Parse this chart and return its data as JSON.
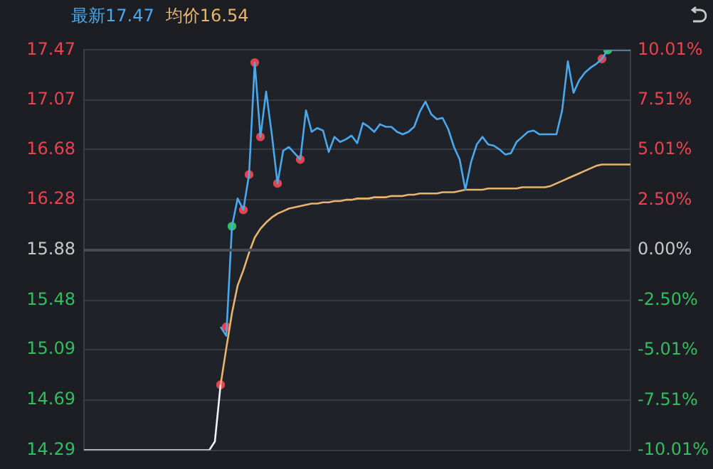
{
  "chart_data": {
    "type": "line",
    "categories": [
      null,
      null,
      null,
      null,
      null,
      null,
      null,
      null,
      null,
      null,
      null,
      null,
      null,
      null,
      null,
      null,
      null,
      null,
      null,
      null,
      null,
      null,
      null,
      null,
      null,
      null,
      null,
      null,
      null,
      null,
      null,
      null,
      null,
      null,
      null,
      null,
      null,
      null,
      null,
      null,
      null,
      null,
      null,
      null,
      null,
      null,
      null,
      null,
      null,
      null,
      null,
      null,
      null,
      null,
      null,
      null,
      null,
      null,
      null,
      null,
      null,
      null,
      null,
      null,
      null,
      null,
      null,
      null,
      null,
      null,
      null,
      null,
      null,
      null,
      null,
      null,
      null,
      null,
      null,
      null,
      null,
      null,
      null,
      null,
      null,
      null,
      null,
      null,
      null,
      null,
      null,
      null,
      null,
      null,
      null,
      null,
      null
    ],
    "series": [
      {
        "color": "#f2f2f2",
        "values": [
          14.29,
          14.29,
          14.29,
          14.29,
          14.29,
          14.29,
          14.29,
          14.29,
          14.29,
          14.29,
          14.29,
          14.29,
          14.29,
          14.29,
          14.29,
          14.29,
          14.29,
          14.29,
          14.29,
          14.29,
          14.29,
          14.29,
          14.29,
          14.36,
          14.81,
          null,
          null,
          null,
          null,
          null,
          null,
          null,
          null,
          null,
          null,
          null,
          null,
          null,
          null,
          null,
          null,
          null,
          null,
          null,
          null,
          null,
          null,
          null,
          null,
          null,
          null,
          null,
          null,
          null,
          null,
          null,
          null,
          null,
          null,
          null,
          null,
          null,
          null,
          null,
          null,
          null,
          null,
          null,
          null,
          null,
          null,
          null,
          null,
          null,
          null,
          null,
          null,
          null,
          null,
          null,
          null,
          null,
          null,
          null,
          null,
          null,
          null,
          null,
          null,
          null,
          null,
          null,
          null,
          null,
          null,
          null,
          null
        ]
      },
      {
        "name": "最新17.47",
        "color": "#4aa8ec",
        "values": [
          null,
          null,
          null,
          null,
          null,
          null,
          null,
          null,
          null,
          null,
          null,
          null,
          null,
          null,
          null,
          null,
          null,
          null,
          null,
          null,
          null,
          null,
          null,
          null,
          15.27,
          15.2,
          16.07,
          16.29,
          16.2,
          16.48,
          17.37,
          16.78,
          17.14,
          16.8,
          16.41,
          16.67,
          16.7,
          16.65,
          16.6,
          16.99,
          16.82,
          16.85,
          16.83,
          16.66,
          16.78,
          16.74,
          16.76,
          16.79,
          16.73,
          16.89,
          16.86,
          16.82,
          16.88,
          16.86,
          16.86,
          16.82,
          16.8,
          16.82,
          16.86,
          16.98,
          17.06,
          16.96,
          16.92,
          16.93,
          16.84,
          16.7,
          16.6,
          16.36,
          16.58,
          16.72,
          16.78,
          16.72,
          16.71,
          16.68,
          16.64,
          16.65,
          16.74,
          16.78,
          16.82,
          16.83,
          16.8,
          16.8,
          16.8,
          16.8,
          16.99,
          17.38,
          17.13,
          17.23,
          17.29,
          17.33,
          17.36,
          17.4,
          17.47,
          17.47,
          17.47,
          17.47,
          17.47
        ]
      },
      {
        "name": "均价16.54",
        "color": "#e8b46e",
        "values": [
          null,
          null,
          null,
          null,
          null,
          null,
          null,
          null,
          null,
          null,
          null,
          null,
          null,
          null,
          null,
          null,
          null,
          null,
          null,
          null,
          null,
          null,
          null,
          null,
          14.81,
          15.1,
          15.38,
          15.6,
          15.72,
          15.86,
          15.98,
          16.05,
          16.1,
          16.14,
          16.17,
          16.19,
          16.21,
          16.22,
          16.23,
          16.24,
          16.25,
          16.25,
          16.26,
          16.26,
          16.27,
          16.27,
          16.28,
          16.28,
          16.29,
          16.29,
          16.29,
          16.3,
          16.3,
          16.3,
          16.31,
          16.31,
          16.31,
          16.32,
          16.32,
          16.33,
          16.33,
          16.33,
          16.33,
          16.34,
          16.34,
          16.34,
          16.35,
          16.36,
          16.36,
          16.36,
          16.36,
          16.37,
          16.37,
          16.37,
          16.37,
          16.37,
          16.37,
          16.38,
          16.38,
          16.38,
          16.38,
          16.38,
          16.39,
          16.41,
          16.43,
          16.45,
          16.47,
          16.49,
          16.51,
          16.53,
          16.55,
          16.56,
          16.56,
          16.56,
          16.56,
          16.56,
          16.56
        ]
      },
      {
        "type": "scatter",
        "marker": "circle",
        "color": "#e0454f",
        "values": [
          null,
          null,
          null,
          null,
          null,
          null,
          null,
          null,
          null,
          null,
          null,
          null,
          null,
          null,
          null,
          null,
          null,
          null,
          null,
          null,
          null,
          null,
          null,
          null,
          14.81,
          15.27,
          null,
          null,
          16.2,
          16.48,
          17.37,
          16.78,
          null,
          null,
          16.41,
          null,
          null,
          null,
          16.6,
          null,
          null,
          null,
          null,
          null,
          null,
          null,
          null,
          null,
          null,
          null,
          null,
          null,
          null,
          null,
          null,
          null,
          null,
          null,
          null,
          null,
          null,
          null,
          null,
          null,
          null,
          null,
          null,
          null,
          null,
          null,
          null,
          null,
          null,
          null,
          null,
          null,
          null,
          null,
          null,
          null,
          null,
          null,
          null,
          null,
          null,
          null,
          null,
          null,
          null,
          null,
          null,
          17.4,
          null,
          null,
          null,
          null,
          null
        ]
      },
      {
        "type": "scatter",
        "marker": "circle",
        "color": "#2fbf5f",
        "values": [
          null,
          null,
          null,
          null,
          null,
          null,
          null,
          null,
          null,
          null,
          null,
          null,
          null,
          null,
          null,
          null,
          null,
          null,
          null,
          null,
          null,
          null,
          null,
          null,
          null,
          null,
          16.07,
          null,
          null,
          null,
          null,
          null,
          null,
          null,
          null,
          null,
          null,
          null,
          null,
          null,
          null,
          null,
          null,
          null,
          null,
          null,
          null,
          null,
          null,
          null,
          null,
          null,
          null,
          null,
          null,
          null,
          null,
          null,
          null,
          null,
          null,
          null,
          null,
          null,
          null,
          null,
          null,
          null,
          null,
          null,
          null,
          null,
          null,
          null,
          null,
          null,
          null,
          null,
          null,
          null,
          null,
          null,
          null,
          null,
          null,
          null,
          null,
          null,
          null,
          null,
          null,
          null,
          17.47,
          null,
          null,
          null,
          null
        ]
      }
    ],
    "ylim": [
      14.29,
      17.47
    ],
    "yticks": [
      {
        "value": 14.29,
        "label": "14.29"
      },
      {
        "value": 14.69,
        "label": "14.69"
      },
      {
        "value": 15.09,
        "label": "15.09"
      },
      {
        "value": 15.48,
        "label": "15.48"
      },
      {
        "value": 15.88,
        "label": "15.88"
      },
      {
        "value": 16.28,
        "label": "16.28"
      },
      {
        "value": 16.68,
        "label": "16.68"
      },
      {
        "value": 17.07,
        "label": "17.07"
      },
      {
        "value": 17.47,
        "label": "17.47"
      }
    ],
    "y2lim": [
      -10.01,
      10.01
    ],
    "y2ticks": [
      {
        "value": -10.01,
        "label": "-10.01%"
      },
      {
        "value": -7.51,
        "label": "-7.51%"
      },
      {
        "value": -5.01,
        "label": "-5.01%"
      },
      {
        "value": -2.5,
        "label": "-2.50%"
      },
      {
        "value": 0,
        "label": "0.00%"
      },
      {
        "value": 2.5,
        "label": "2.50%"
      },
      {
        "value": 5.01,
        "label": "5.01%"
      },
      {
        "value": 7.51,
        "label": "7.51%"
      },
      {
        "value": 10.01,
        "label": "10.01%"
      }
    ],
    "ref_lines": [
      {
        "axis": "y",
        "value": 15.88,
        "color": "#484b52"
      }
    ],
    "grid": "y",
    "legend": "top left",
    "marker": "none"
  }
}
